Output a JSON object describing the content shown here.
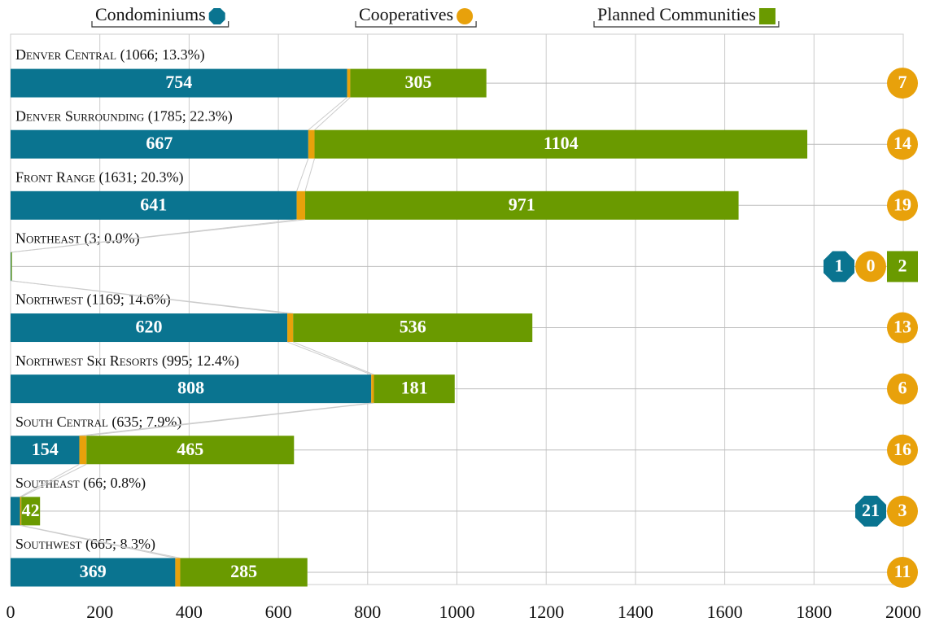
{
  "chart_data": {
    "type": "stacked-bar-horizontal",
    "categories": [
      "Denver Central (1066; 13.3%)",
      "Denver Surrounding (1785; 22.3%)",
      "Front Range (1631; 20.3%)",
      "Northeast (3; 0.0%)",
      "Northwest (1169; 14.6%)",
      "Northwest Ski Resorts (995; 12.4%)",
      "South Central (635; 7.9%)",
      "Southeast (66; 0.8%)",
      "Southwest (665; 8.3%)"
    ],
    "series": [
      {
        "name": "Condominiums",
        "color": "#0a7490",
        "values": [
          754,
          667,
          641,
          1,
          620,
          808,
          154,
          21,
          369
        ]
      },
      {
        "name": "Cooperatives",
        "color": "#e8a10b",
        "values": [
          7,
          14,
          19,
          0,
          13,
          6,
          16,
          3,
          11
        ]
      },
      {
        "name": "Planned Communities",
        "color": "#6a9a00",
        "values": [
          305,
          1104,
          971,
          2,
          536,
          181,
          465,
          42,
          285
        ]
      }
    ],
    "xlim": [
      0,
      2000
    ],
    "xticks": [
      0,
      200,
      400,
      600,
      800,
      1000,
      1200,
      1400,
      1600,
      1800,
      2000
    ],
    "grid": true,
    "legend": "top"
  }
}
